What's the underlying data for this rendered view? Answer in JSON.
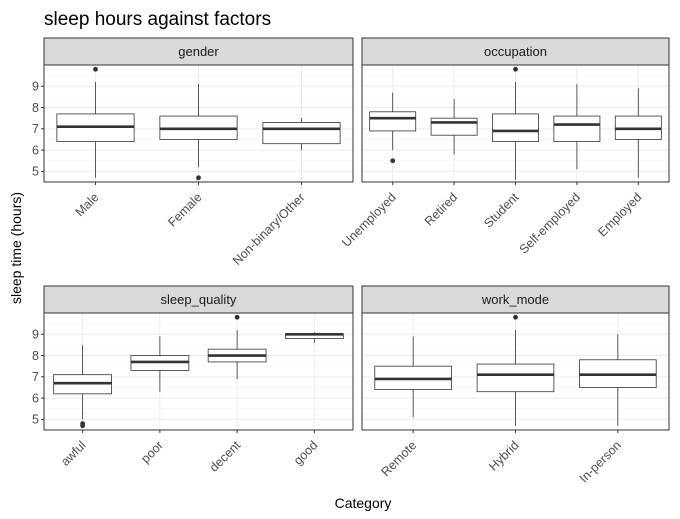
{
  "chart_data": {
    "type": "boxplot",
    "title": "sleep hours against factors",
    "xlabel": "Category",
    "ylabel": "sleep time (hours)",
    "ylim": [
      4.5,
      10.0
    ],
    "yticks": [
      5,
      6,
      7,
      8,
      9
    ],
    "grid": true,
    "facets": [
      {
        "name": "gender",
        "categories": [
          {
            "label": "Male",
            "min": 4.7,
            "q1": 6.4,
            "median": 7.1,
            "q3": 7.7,
            "max": 9.2,
            "outliers": [
              9.8
            ]
          },
          {
            "label": "Female",
            "min": 5.2,
            "q1": 6.5,
            "median": 7.0,
            "q3": 7.6,
            "max": 9.1,
            "outliers": [
              4.7
            ]
          },
          {
            "label": "Non-binary/Other",
            "min": 6.0,
            "q1": 6.3,
            "median": 7.0,
            "q3": 7.3,
            "max": 7.5,
            "outliers": []
          }
        ]
      },
      {
        "name": "occupation",
        "categories": [
          {
            "label": "Unemployed",
            "min": 6.0,
            "q1": 6.9,
            "median": 7.5,
            "q3": 7.8,
            "max": 8.7,
            "outliers": [
              5.5
            ]
          },
          {
            "label": "Retired",
            "min": 5.8,
            "q1": 6.7,
            "median": 7.3,
            "q3": 7.5,
            "max": 8.4,
            "outliers": []
          },
          {
            "label": "Student",
            "min": 4.6,
            "q1": 6.4,
            "median": 6.9,
            "q3": 7.7,
            "max": 9.2,
            "outliers": [
              9.8
            ]
          },
          {
            "label": "Self-employed",
            "min": 5.1,
            "q1": 6.4,
            "median": 7.2,
            "q3": 7.6,
            "max": 9.1,
            "outliers": []
          },
          {
            "label": "Employed",
            "min": 4.7,
            "q1": 6.5,
            "median": 7.0,
            "q3": 7.6,
            "max": 8.9,
            "outliers": []
          }
        ]
      },
      {
        "name": "sleep_quality",
        "categories": [
          {
            "label": "awful",
            "min": 5.0,
            "q1": 6.2,
            "median": 6.7,
            "q3": 7.1,
            "max": 8.5,
            "outliers": [
              4.8,
              4.7
            ]
          },
          {
            "label": "poor",
            "min": 6.3,
            "q1": 7.3,
            "median": 7.7,
            "q3": 8.0,
            "max": 8.9,
            "outliers": []
          },
          {
            "label": "decent",
            "min": 6.9,
            "q1": 7.7,
            "median": 8.0,
            "q3": 8.3,
            "max": 9.2,
            "outliers": [
              9.8
            ]
          },
          {
            "label": "good",
            "min": 8.6,
            "q1": 8.8,
            "median": 9.0,
            "q3": 9.0,
            "max": 9.1,
            "outliers": []
          }
        ]
      },
      {
        "name": "work_mode",
        "categories": [
          {
            "label": "Remote",
            "min": 5.1,
            "q1": 6.4,
            "median": 6.9,
            "q3": 7.5,
            "max": 8.9,
            "outliers": []
          },
          {
            "label": "Hybrid",
            "min": 4.7,
            "q1": 6.3,
            "median": 7.1,
            "q3": 7.6,
            "max": 9.2,
            "outliers": [
              9.8
            ]
          },
          {
            "label": "In-person",
            "min": 4.7,
            "q1": 6.5,
            "median": 7.1,
            "q3": 7.8,
            "max": 9.0,
            "outliers": []
          }
        ]
      }
    ]
  },
  "colors": {
    "strip_fill": "#d9d9d9",
    "grid_major": "#ebebeb",
    "grid_minor": "#f5f5f5",
    "panel_border": "#333333",
    "box_stroke": "#333333",
    "median": "#333333",
    "outlier": "#333333"
  }
}
